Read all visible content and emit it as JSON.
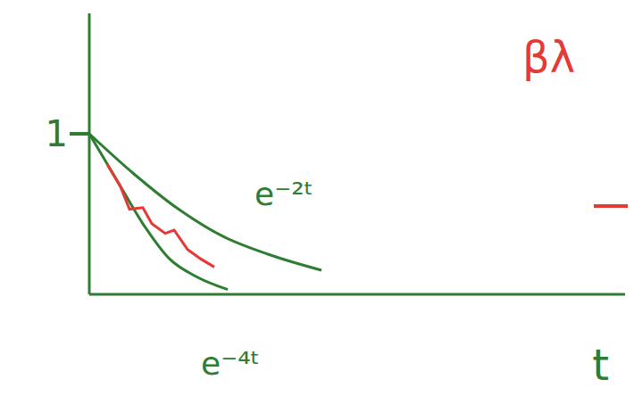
{
  "chart_data": {
    "type": "line",
    "xlabel": "t",
    "xlim": [
      0,
      6
    ],
    "ylim": [
      0,
      1.75
    ],
    "yticks": [
      1
    ],
    "tick_labels": "y",
    "grid": false,
    "annotation": "βλ",
    "series": [
      {
        "name": "e⁻²ᵗ",
        "color": "#2e7d32",
        "x": [
          0,
          0.5,
          1,
          1.5,
          2,
          2.6
        ],
        "values": [
          1,
          0.75,
          0.53,
          0.36,
          0.25,
          0.15
        ]
      },
      {
        "name": "e⁻⁴ᵗ",
        "color": "#2e7d32",
        "x": [
          0,
          0.3,
          0.6,
          0.9,
          1.2,
          1.55
        ],
        "values": [
          1,
          0.72,
          0.44,
          0.22,
          0.11,
          0.03
        ]
      },
      {
        "color": "#e53935",
        "x": [
          0.2,
          0.35,
          0.45,
          0.6,
          0.7,
          0.85,
          0.95,
          1.1,
          1.25,
          1.4
        ],
        "values": [
          0.81,
          0.67,
          0.53,
          0.54,
          0.44,
          0.38,
          0.4,
          0.28,
          0.22,
          0.17
        ]
      }
    ]
  }
}
